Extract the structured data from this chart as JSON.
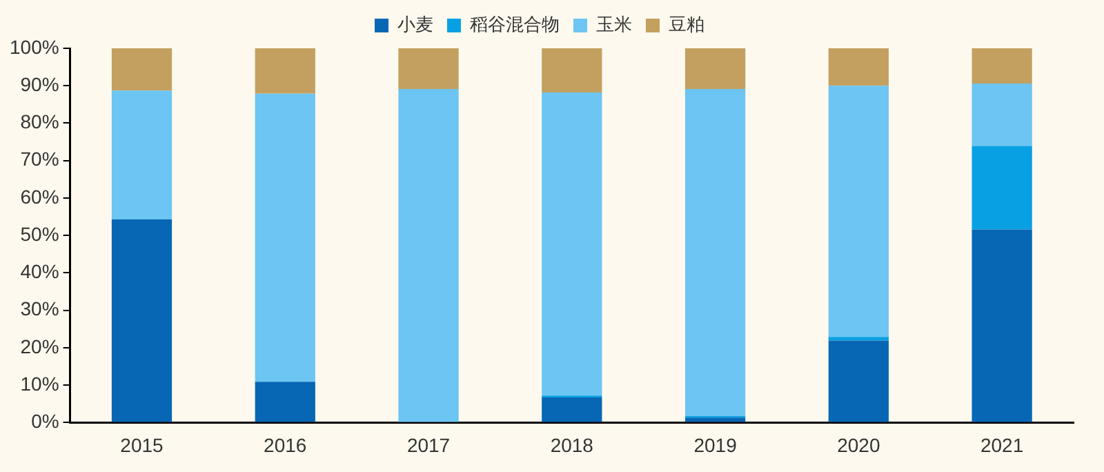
{
  "chart_data": {
    "type": "bar",
    "stacked": true,
    "categories": [
      "2015",
      "2016",
      "2017",
      "2018",
      "2019",
      "2020",
      "2021"
    ],
    "series": [
      {
        "name": "小麦",
        "color": "#0767b4",
        "values": [
          54.3,
          10.9,
          0,
          6.7,
          1.3,
          21.9,
          51.6
        ]
      },
      {
        "name": "稻谷混合物",
        "color": "#08a0e3",
        "values": [
          0,
          0,
          0,
          0.5,
          0.5,
          1,
          22.3
        ]
      },
      {
        "name": "玉米",
        "color": "#6cc5f2",
        "values": [
          34.4,
          77,
          89.1,
          81,
          87.3,
          67.1,
          16.7
        ]
      },
      {
        "name": "豆粕",
        "color": "#c3a060",
        "values": [
          11.3,
          12.1,
          10.9,
          11.8,
          10.9,
          10,
          9.4
        ]
      }
    ],
    "ylim": [
      0,
      100
    ],
    "yticks": [
      {
        "value": 0,
        "label": "0%"
      },
      {
        "value": 10,
        "label": "10%"
      },
      {
        "value": 20,
        "label": "20%"
      },
      {
        "value": 30,
        "label": "30%"
      },
      {
        "value": 40,
        "label": "40%"
      },
      {
        "value": 50,
        "label": "50%"
      },
      {
        "value": 60,
        "label": "60%"
      },
      {
        "value": 70,
        "label": "70%"
      },
      {
        "value": 80,
        "label": "80%"
      },
      {
        "value": 90,
        "label": "90%"
      },
      {
        "value": 100,
        "label": "100%"
      }
    ],
    "grid": false,
    "legend": "top"
  }
}
